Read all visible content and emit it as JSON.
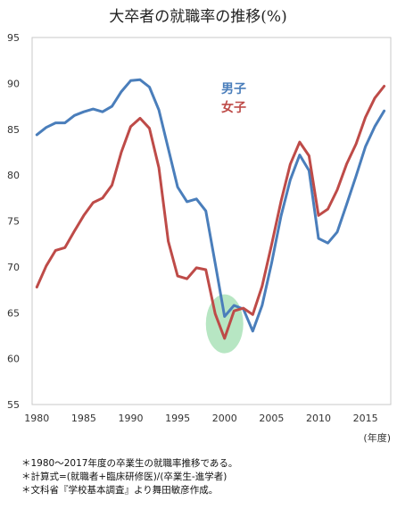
{
  "chart_data": {
    "type": "line",
    "title": "大卒者の就職率の推移(%)",
    "x_unit_label": "(年度)",
    "x": [
      1980,
      1981,
      1982,
      1983,
      1984,
      1985,
      1986,
      1987,
      1988,
      1989,
      1990,
      1991,
      1992,
      1993,
      1994,
      1995,
      1996,
      1997,
      1998,
      1999,
      2000,
      2001,
      2002,
      2003,
      2004,
      2005,
      2006,
      2007,
      2008,
      2009,
      2010,
      2011,
      2012,
      2013,
      2014,
      2015,
      2016,
      2017
    ],
    "xticks": [
      1980,
      1985,
      1990,
      1995,
      2000,
      2005,
      2010,
      2015
    ],
    "ylim": [
      55,
      95
    ],
    "yticks": [
      55,
      60,
      65,
      70,
      75,
      80,
      85,
      90,
      95
    ],
    "series": [
      {
        "name": "男子",
        "color": "#4a7ebb",
        "values": [
          84.4,
          85.2,
          85.7,
          85.7,
          86.5,
          86.9,
          87.2,
          86.9,
          87.5,
          89.1,
          90.3,
          90.4,
          89.6,
          87.1,
          82.9,
          78.7,
          77.1,
          77.4,
          76.1,
          70.4,
          64.6,
          65.8,
          65.4,
          63.0,
          65.8,
          70.4,
          75.5,
          79.5,
          82.2,
          80.5,
          73.1,
          72.6,
          73.8,
          76.8,
          79.9,
          83.1,
          85.3,
          87.0
        ]
      },
      {
        "name": "女子",
        "color": "#be4b48",
        "values": [
          67.8,
          70.1,
          71.8,
          72.1,
          73.9,
          75.6,
          77.0,
          77.5,
          78.9,
          82.5,
          85.3,
          86.2,
          85.1,
          80.8,
          72.8,
          69.0,
          68.7,
          69.9,
          69.7,
          64.9,
          62.2,
          65.2,
          65.5,
          64.8,
          67.9,
          72.4,
          77.1,
          81.2,
          83.6,
          82.1,
          75.6,
          76.3,
          78.4,
          81.2,
          83.4,
          86.3,
          88.4,
          89.7
        ]
      }
    ],
    "highlight": {
      "x": 2000,
      "y": 63.8,
      "color": "#99dcaa"
    },
    "grid": false
  },
  "notes": [
    "＊1980〜2017年度の卒業生の就職率推移である。",
    "＊計算式=(就職者+臨床研修医)/(卒業生-進学者)",
    "＊文科省『学校基本調査』より舞田敏彦作成。"
  ]
}
